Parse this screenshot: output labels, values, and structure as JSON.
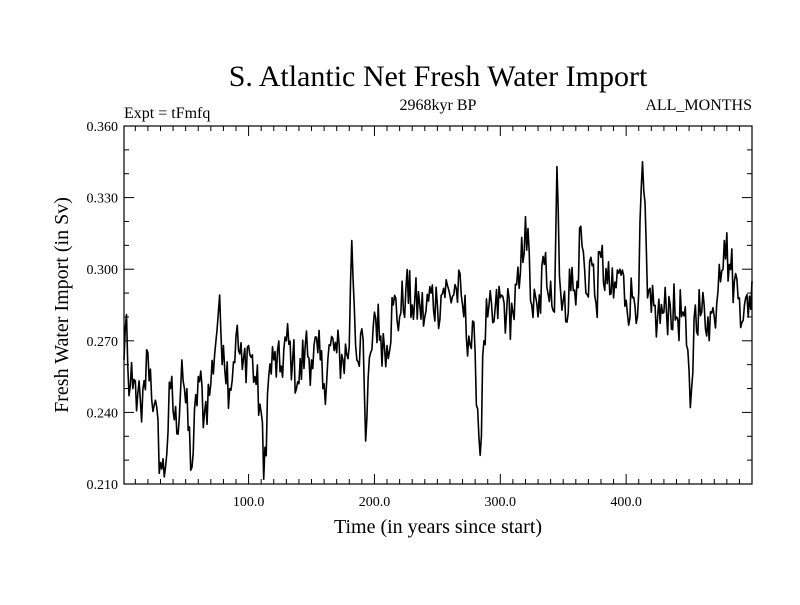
{
  "chart_data": {
    "type": "line",
    "title": "S. Atlantic Net Fresh Water Import",
    "subtitle_left": "Expt = tFmfq",
    "subtitle_center": "2968kyr BP",
    "subtitle_right": "ALL_MONTHS",
    "xlabel": "Time (in years since start)",
    "ylabel": "Fresh Water Import (in Sv)",
    "xlim": [
      1,
      500
    ],
    "ylim": [
      0.21,
      0.36
    ],
    "xticks": [
      100,
      200,
      300,
      400
    ],
    "xtick_labels": [
      "100.0",
      "200.0",
      "300.0",
      "400.0"
    ],
    "yticks": [
      0.21,
      0.24,
      0.27,
      0.3,
      0.33,
      0.36
    ],
    "ytick_labels": [
      "0.210",
      "0.240",
      "0.270",
      "0.300",
      "0.330",
      "0.360"
    ],
    "grid": false,
    "series": [
      {
        "name": "fresh-water-import",
        "x_start": 1,
        "x_end": 500,
        "n_points": 500,
        "keypoints": [
          [
            1,
            0.262
          ],
          [
            3,
            0.281
          ],
          [
            5,
            0.247
          ],
          [
            8,
            0.25
          ],
          [
            12,
            0.248
          ],
          [
            15,
            0.236
          ],
          [
            20,
            0.265
          ],
          [
            25,
            0.243
          ],
          [
            30,
            0.219
          ],
          [
            33,
            0.213
          ],
          [
            38,
            0.25
          ],
          [
            43,
            0.231
          ],
          [
            47,
            0.262
          ],
          [
            50,
            0.244
          ],
          [
            55,
            0.217
          ],
          [
            60,
            0.255
          ],
          [
            65,
            0.24
          ],
          [
            70,
            0.252
          ],
          [
            76,
            0.282
          ],
          [
            80,
            0.268
          ],
          [
            85,
            0.25
          ],
          [
            90,
            0.272
          ],
          [
            95,
            0.258
          ],
          [
            100,
            0.268
          ],
          [
            105,
            0.255
          ],
          [
            110,
            0.24
          ],
          [
            112,
            0.212
          ],
          [
            116,
            0.255
          ],
          [
            120,
            0.262
          ],
          [
            125,
            0.257
          ],
          [
            130,
            0.27
          ],
          [
            135,
            0.262
          ],
          [
            140,
            0.252
          ],
          [
            145,
            0.268
          ],
          [
            150,
            0.262
          ],
          [
            155,
            0.265
          ],
          [
            160,
            0.252
          ],
          [
            165,
            0.268
          ],
          [
            170,
            0.265
          ],
          [
            175,
            0.262
          ],
          [
            180,
            0.268
          ],
          [
            182,
            0.312
          ],
          [
            186,
            0.262
          ],
          [
            190,
            0.275
          ],
          [
            193,
            0.228
          ],
          [
            197,
            0.265
          ],
          [
            200,
            0.282
          ],
          [
            205,
            0.272
          ],
          [
            210,
            0.268
          ],
          [
            215,
            0.285
          ],
          [
            220,
            0.28
          ],
          [
            225,
            0.292
          ],
          [
            230,
            0.285
          ],
          [
            236,
            0.285
          ],
          [
            240,
            0.28
          ],
          [
            245,
            0.29
          ],
          [
            250,
            0.285
          ],
          [
            255,
            0.292
          ],
          [
            260,
            0.289
          ],
          [
            265,
            0.292
          ],
          [
            270,
            0.285
          ],
          [
            275,
            0.272
          ],
          [
            280,
            0.265
          ],
          [
            284,
            0.222
          ],
          [
            287,
            0.27
          ],
          [
            290,
            0.28
          ],
          [
            295,
            0.278
          ],
          [
            300,
            0.288
          ],
          [
            305,
            0.282
          ],
          [
            310,
            0.282
          ],
          [
            315,
            0.292
          ],
          [
            320,
            0.322
          ],
          [
            325,
            0.285
          ],
          [
            330,
            0.28
          ],
          [
            335,
            0.302
          ],
          [
            340,
            0.295
          ],
          [
            343,
            0.282
          ],
          [
            345,
            0.343
          ],
          [
            348,
            0.29
          ],
          [
            352,
            0.278
          ],
          [
            355,
            0.3
          ],
          [
            360,
            0.285
          ],
          [
            364,
            0.318
          ],
          [
            368,
            0.29
          ],
          [
            372,
            0.305
          ],
          [
            376,
            0.286
          ],
          [
            380,
            0.305
          ],
          [
            385,
            0.294
          ],
          [
            390,
            0.288
          ],
          [
            395,
            0.3
          ],
          [
            400,
            0.287
          ],
          [
            405,
            0.288
          ],
          [
            410,
            0.29
          ],
          [
            413,
            0.345
          ],
          [
            417,
            0.288
          ],
          [
            420,
            0.282
          ],
          [
            425,
            0.28
          ],
          [
            430,
            0.282
          ],
          [
            435,
            0.285
          ],
          [
            440,
            0.28
          ],
          [
            445,
            0.282
          ],
          [
            448,
            0.268
          ],
          [
            451,
            0.242
          ],
          [
            455,
            0.285
          ],
          [
            460,
            0.282
          ],
          [
            465,
            0.28
          ],
          [
            470,
            0.28
          ],
          [
            474,
            0.302
          ],
          [
            478,
            0.312
          ],
          [
            482,
            0.302
          ],
          [
            486,
            0.295
          ],
          [
            490,
            0.288
          ],
          [
            494,
            0.285
          ],
          [
            497,
            0.28
          ],
          [
            500,
            0.295
          ]
        ],
        "mean_trend": [
          0.25,
          0.292
        ],
        "noise_amplitude": 0.012
      }
    ]
  }
}
